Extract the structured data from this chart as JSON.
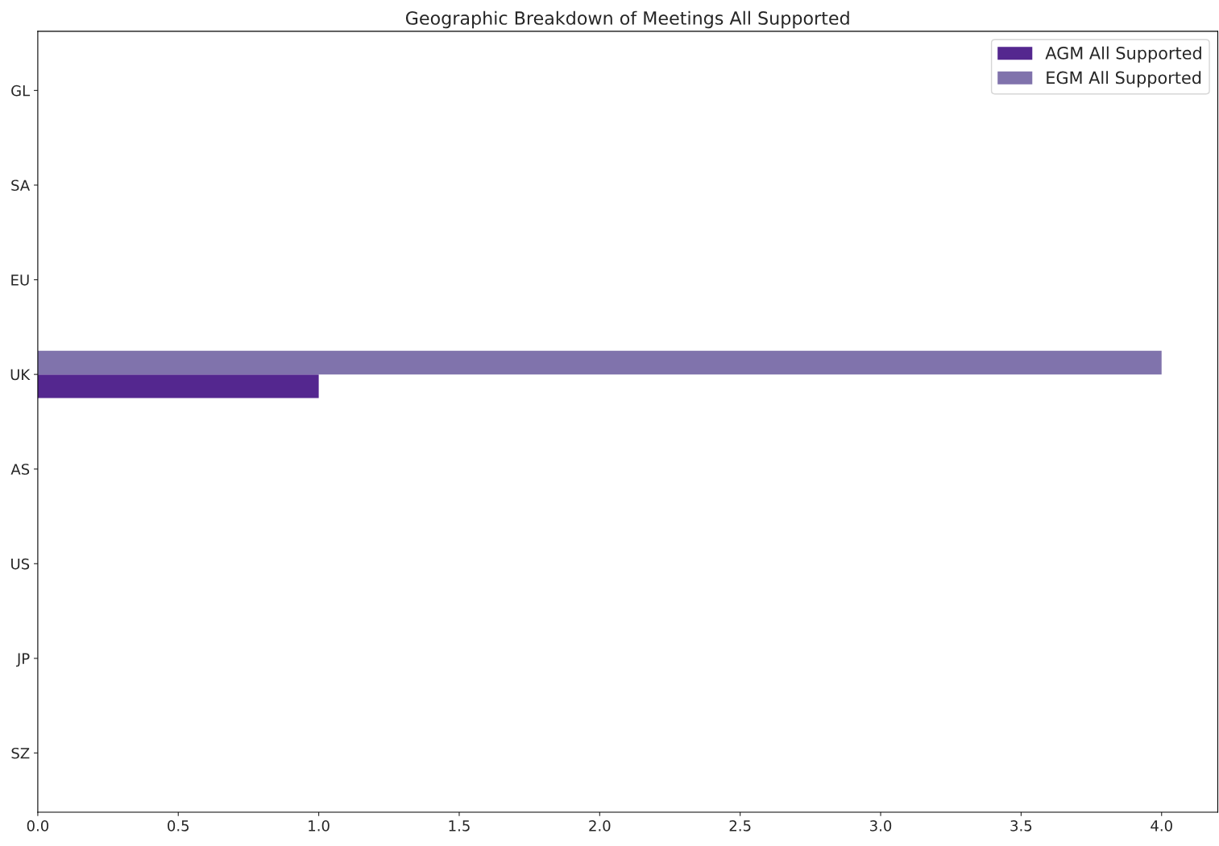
{
  "chart_data": {
    "type": "bar",
    "orientation": "horizontal",
    "title": "Geographic Breakdown of Meetings All Supported",
    "categories": [
      "GL",
      "SA",
      "EU",
      "UK",
      "AS",
      "US",
      "JP",
      "SZ"
    ],
    "series": [
      {
        "name": "AGM All Supported",
        "color": "#54278f",
        "values": [
          0,
          0,
          0,
          1,
          0,
          0,
          0,
          0
        ]
      },
      {
        "name": "EGM All Supported",
        "color": "#8073ac",
        "values": [
          0,
          0,
          0,
          4,
          0,
          0,
          0,
          0
        ]
      }
    ],
    "xlim": [
      0,
      4.2
    ],
    "xticks": [
      {
        "value": 0,
        "label": "0.0"
      },
      0.5,
      {
        "value": 1,
        "label": "1.0"
      },
      1.5,
      {
        "value": 2,
        "label": "2.0"
      },
      2.5,
      {
        "value": 3,
        "label": "3.0"
      },
      3.5,
      {
        "value": 4,
        "label": "4.0"
      }
    ],
    "grid": false,
    "legend": "top right"
  }
}
